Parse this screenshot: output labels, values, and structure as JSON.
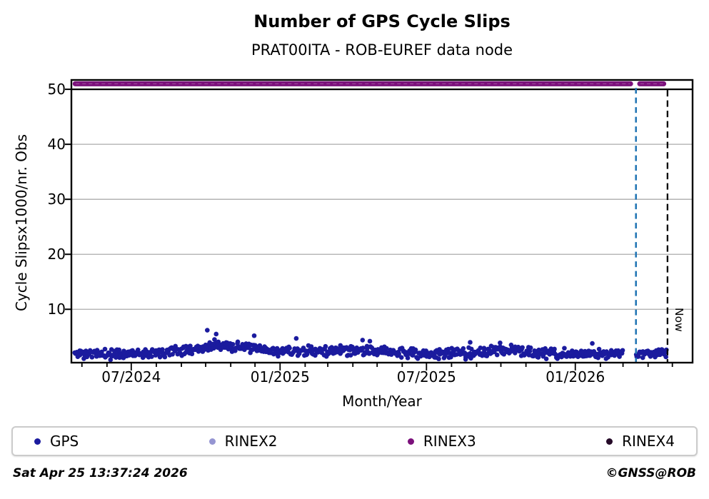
{
  "header": {
    "title": "Number of GPS Cycle Slips",
    "subtitle": "PRAT00ITA - ROB-EUREF data node"
  },
  "footer": {
    "timestamp": "Sat Apr 25 13:37:24 2026",
    "credit": "©GNSS@ROB"
  },
  "legend": {
    "items": [
      {
        "label": "GPS",
        "color": "#1b1b9e"
      },
      {
        "label": "RINEX2",
        "color": "#9595d2"
      },
      {
        "label": "RINEX3",
        "color": "#7b107b"
      },
      {
        "label": "RINEX4",
        "color": "#250a28"
      }
    ]
  },
  "chart_data": {
    "type": "scatter",
    "title": "Number of GPS Cycle Slips",
    "subtitle": "PRAT00ITA - ROB-EUREF data node",
    "xlabel": "Month/Year",
    "ylabel": "Cycle Slipsx1000/nr. Obs",
    "x_range": [
      "2024-04-18",
      "2026-05-26"
    ],
    "ylim": [
      0.3,
      51.7
    ],
    "y_ticks": [
      10,
      20,
      30,
      40,
      50
    ],
    "x_major_ticks": [
      {
        "date": "2024-07-01",
        "label": "07/2024"
      },
      {
        "date": "2025-01-01",
        "label": "01/2025"
      },
      {
        "date": "2025-07-01",
        "label": "07/2025"
      },
      {
        "date": "2026-01-01",
        "label": "01/2026"
      }
    ],
    "x_minor_ticks": "monthly",
    "grid": {
      "horizontal": true,
      "color": "#ababab",
      "cap_line_value": 50,
      "cap_line_color": "#000000",
      "legend_position": "bottom"
    },
    "series": [
      {
        "name": "GPS",
        "color": "#1b1b9e",
        "marker_radius": 3.3,
        "start": "2024-04-22",
        "end": "2026-04-24",
        "gap": [
          "2026-03-01",
          "2026-03-17"
        ],
        "seed": 11,
        "noise_sd": 0.45,
        "min_value": 0.7,
        "max_value": 6.4,
        "monthly_means": [
          {
            "month": "2024-04",
            "mean": 2.0
          },
          {
            "month": "2024-05",
            "mean": 1.9
          },
          {
            "month": "2024-06",
            "mean": 1.9
          },
          {
            "month": "2024-07",
            "mean": 2.1
          },
          {
            "month": "2024-08",
            "mean": 2.4
          },
          {
            "month": "2024-09",
            "mean": 2.9
          },
          {
            "month": "2024-10",
            "mean": 3.4
          },
          {
            "month": "2024-11",
            "mean": 3.1
          },
          {
            "month": "2024-12",
            "mean": 2.5
          },
          {
            "month": "2025-01",
            "mean": 2.3
          },
          {
            "month": "2025-02",
            "mean": 2.3
          },
          {
            "month": "2025-03",
            "mean": 2.6
          },
          {
            "month": "2025-04",
            "mean": 2.3
          },
          {
            "month": "2025-05",
            "mean": 2.4
          },
          {
            "month": "2025-06",
            "mean": 2.0
          },
          {
            "month": "2025-07",
            "mean": 1.9
          },
          {
            "month": "2025-08",
            "mean": 2.0
          },
          {
            "month": "2025-09",
            "mean": 2.2
          },
          {
            "month": "2025-10",
            "mean": 2.7
          },
          {
            "month": "2025-11",
            "mean": 2.0
          },
          {
            "month": "2025-12",
            "mean": 1.8
          },
          {
            "month": "2026-01",
            "mean": 1.8
          },
          {
            "month": "2026-02",
            "mean": 1.9
          },
          {
            "month": "2026-03",
            "mean": 2.1
          },
          {
            "month": "2026-04",
            "mean": 2.1
          }
        ],
        "outliers": [
          {
            "date": "2024-10-03",
            "value": 6.2
          },
          {
            "date": "2024-10-14",
            "value": 5.5
          },
          {
            "date": "2024-11-30",
            "value": 5.2
          },
          {
            "date": "2025-01-21",
            "value": 4.7
          },
          {
            "date": "2025-04-13",
            "value": 4.4
          },
          {
            "date": "2025-04-22",
            "value": 4.2
          },
          {
            "date": "2025-08-24",
            "value": 4.0
          },
          {
            "date": "2025-09-30",
            "value": 3.9
          },
          {
            "date": "2026-01-22",
            "value": 3.8
          }
        ]
      },
      {
        "name": "RINEX2",
        "color": "#9595d2",
        "points": []
      },
      {
        "name": "RINEX3",
        "color": "#7b107b",
        "value": 51,
        "band_height": 7,
        "segments": [
          [
            "2024-04-20",
            "2026-03-13"
          ],
          [
            "2026-03-19",
            "2026-04-23"
          ]
        ]
      },
      {
        "name": "RINEX4",
        "color": "#250a28",
        "points": []
      }
    ],
    "annotations": {
      "last_data_line": {
        "date": "2026-03-17",
        "color": "#2577b5",
        "style": "dashed"
      },
      "now_line": {
        "date": "2026-04-25",
        "color": "#000000",
        "style": "dashed",
        "label": "Now"
      }
    }
  }
}
